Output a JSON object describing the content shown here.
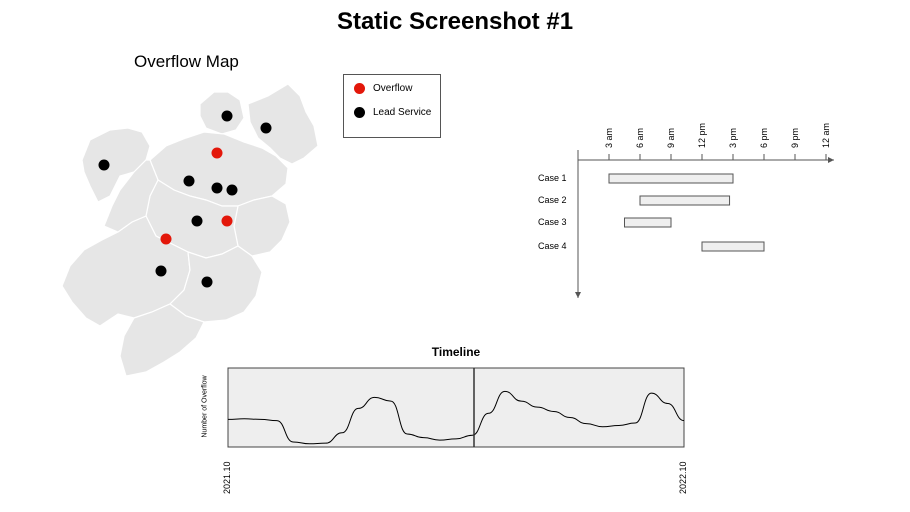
{
  "page": {
    "title": "Static Screenshot #1"
  },
  "map": {
    "title": "Overflow Map",
    "legend": [
      {
        "label": "Overflow",
        "color": "#e3170a"
      },
      {
        "label": "Lead Service",
        "color": "#000000"
      }
    ]
  },
  "chart_data": [
    {
      "type": "scatter",
      "title": "Overflow Map",
      "series": [
        {
          "name": "Overflow",
          "color": "#e3170a",
          "points": [
            [
              217,
              153
            ],
            [
              227,
              221
            ],
            [
              166,
              239
            ]
          ]
        },
        {
          "name": "Lead Service",
          "color": "#000000",
          "points": [
            [
              227,
              116
            ],
            [
              266,
              128
            ],
            [
              104,
              165
            ],
            [
              189,
              181
            ],
            [
              217,
              188
            ],
            [
              232,
              190
            ],
            [
              197,
              221
            ],
            [
              161,
              271
            ],
            [
              207,
              282
            ]
          ]
        }
      ],
      "legend_position": "top-right"
    },
    {
      "type": "bar",
      "subtype": "gantt",
      "title": "",
      "x_ticks": [
        "3 am",
        "6 am",
        "9 am",
        "12 pm",
        "3 pm",
        "6 pm",
        "9 pm",
        "12 am"
      ],
      "tasks": [
        {
          "name": "Case 1",
          "start": "3 am",
          "end": "3 pm"
        },
        {
          "name": "Case 2",
          "start": "6 am",
          "end": "2:40 pm"
        },
        {
          "name": "Case 3",
          "start": "4:30 am",
          "end": "9 am"
        },
        {
          "name": "Case 4",
          "start": "12 pm",
          "end": "6 pm"
        }
      ]
    },
    {
      "type": "line",
      "title": "Timeline",
      "ylabel": "Number of Overflow",
      "x_ticks": [
        "2021.10",
        "2022.10"
      ],
      "marker": "2022.04",
      "series": [
        {
          "values": [
            0.42,
            0.43,
            0.42,
            0.4,
            0.05,
            0.02,
            0.03,
            0.2,
            0.6,
            0.78,
            0.72,
            0.18,
            0.12,
            0.08,
            0.1,
            0.16,
            0.52,
            0.88,
            0.72,
            0.62,
            0.55,
            0.45,
            0.35,
            0.3,
            0.32,
            0.36,
            0.85,
            0.68,
            0.4
          ]
        }
      ]
    }
  ]
}
